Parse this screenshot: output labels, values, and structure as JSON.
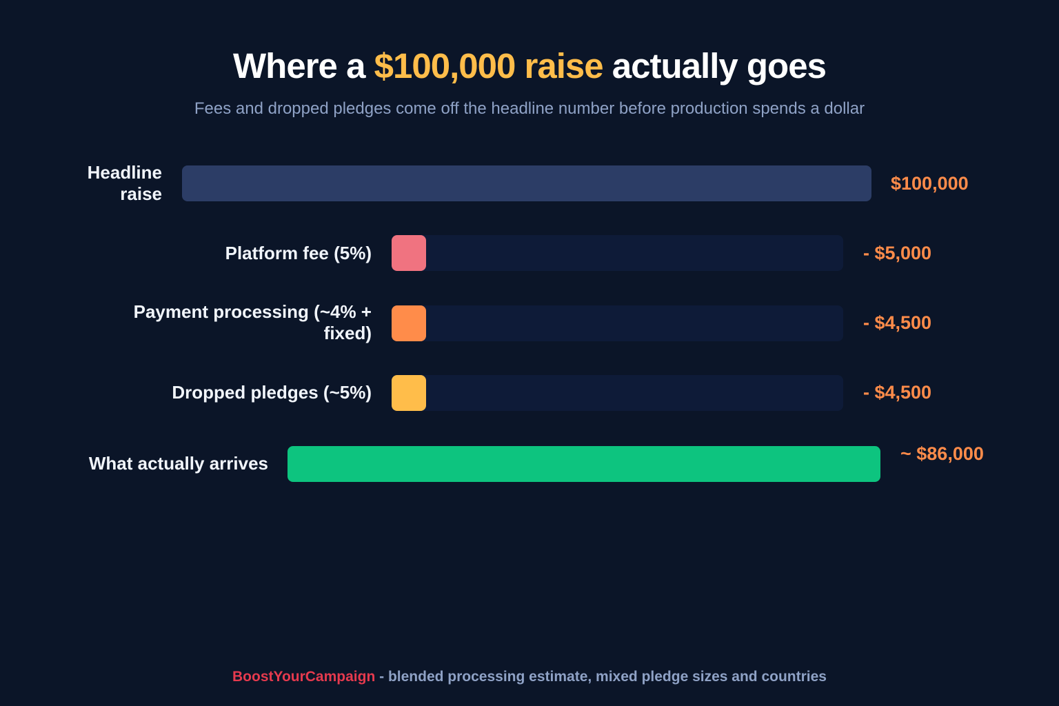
{
  "title": {
    "prefix": "Where a ",
    "highlight": "$100,000 raise",
    "suffix": " actually goes"
  },
  "subtitle": "Fees and dropped pledges come off the headline number before production spends a dollar",
  "colors": {
    "background": "#0b1528",
    "headline_bar": "#2c3d66",
    "track": "#0e1b38",
    "platform_fee": "#f07380",
    "payment_processing": "#ff8c4a",
    "dropped_pledges": "#ffbd4a",
    "arrives": "#0dc47f",
    "value_text": "#ff8c4a",
    "title_highlight": "#ffbd4a",
    "brand": "#e63a4e"
  },
  "chart_data": {
    "type": "bar",
    "orientation": "horizontal",
    "categories": [
      "Headline raise",
      "Platform fee (5%)",
      "Payment processing (~4% + fixed)",
      "Dropped pledges (~5%)",
      "What actually arrives"
    ],
    "values": [
      100000,
      5000,
      4500,
      4500,
      86000
    ],
    "value_labels": [
      "$100,000",
      "- $5,000",
      "- $4,500",
      "- $4,500",
      "~ $86,000"
    ],
    "title": "Where a $100,000 raise actually goes",
    "subtitle": "Fees and dropped pledges come off the headline number before production spends a dollar",
    "xlabel": "",
    "ylabel": "",
    "grid": false,
    "legend": "none"
  },
  "footer": {
    "brand": "BoostYourCampaign",
    "text": " - blended processing estimate, mixed pledge sizes and countries"
  }
}
